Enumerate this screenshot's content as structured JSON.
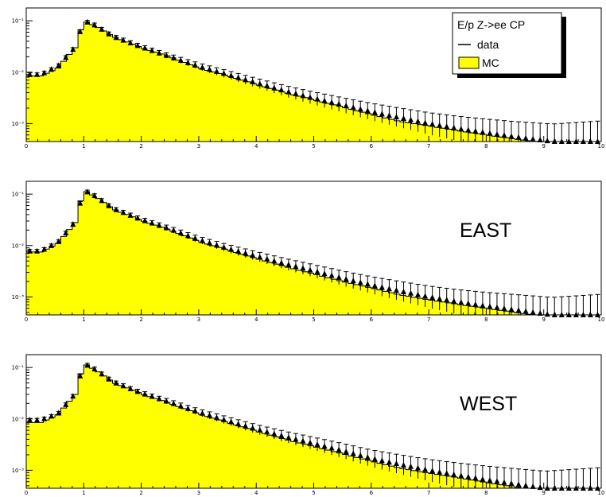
{
  "colors": {
    "mc_fill": "#ffff00",
    "mc_line": "#000000",
    "data_marker": "#000000",
    "frame": "#000000",
    "background": "#ffffff"
  },
  "legend": {
    "title": "E/p Z->ee CP",
    "entries": [
      "data",
      "MC"
    ],
    "placement": "top-right of first panel"
  },
  "chart_data": [
    {
      "type": "histogram",
      "label": "",
      "x_range": [
        0,
        10
      ],
      "x_ticks": [
        "0",
        "1",
        "2",
        "3",
        "4",
        "5",
        "6",
        "7",
        "8",
        "9",
        "10"
      ],
      "y_scale": "log",
      "y_ticks": [
        "10⁻¹",
        "10⁻²",
        "10⁻³"
      ],
      "series": [
        {
          "name": "MC",
          "style": "filled histogram",
          "x": [
            0.05,
            0.25,
            0.55,
            0.85,
            1.0,
            1.2,
            1.5,
            2.0,
            2.5,
            3.0,
            3.5,
            4.0,
            4.5,
            5.0,
            5.5,
            6.0,
            6.5,
            7.0,
            7.5,
            8.0,
            8.5,
            9.0,
            9.5,
            10.0
          ],
          "y": [
            0.0085,
            0.0085,
            0.012,
            0.03,
            0.1,
            0.08,
            0.05,
            0.03,
            0.02,
            0.012,
            0.0085,
            0.0058,
            0.004,
            0.0029,
            0.0021,
            0.0015,
            0.0011,
            0.0009,
            0.00073,
            0.0006,
            0.0005,
            0.00043,
            0.00036,
            0.00031
          ]
        },
        {
          "name": "data",
          "style": "triangles with error bars",
          "x": [
            0.05,
            0.25,
            0.55,
            0.85,
            1.0,
            1.2,
            1.5,
            2.0,
            2.5,
            3.0,
            3.5,
            4.0,
            4.5,
            5.0,
            5.5,
            6.0,
            6.5,
            7.0,
            7.5,
            8.0,
            8.5,
            9.0,
            9.5,
            10.0
          ],
          "y": [
            0.009,
            0.009,
            0.013,
            0.031,
            0.1,
            0.082,
            0.05,
            0.031,
            0.02,
            0.013,
            0.009,
            0.0062,
            0.0043,
            0.0031,
            0.0023,
            0.0017,
            0.0013,
            0.001,
            0.0008,
            0.00066,
            0.00055,
            0.00047,
            0.0004,
            0.00034
          ]
        }
      ]
    },
    {
      "type": "histogram",
      "label": "EAST",
      "x_range": [
        0,
        10
      ],
      "x_ticks": [
        "0",
        "1",
        "2",
        "3",
        "4",
        "5",
        "6",
        "7",
        "8",
        "9",
        "10"
      ],
      "y_scale": "log",
      "y_ticks": [
        "10⁻¹",
        "10⁻²",
        "10⁻³"
      ],
      "series": [
        {
          "name": "MC",
          "style": "filled histogram",
          "x": [
            0.05,
            0.25,
            0.55,
            0.85,
            1.0,
            1.2,
            1.5,
            2.0,
            2.5,
            3.0,
            3.5,
            4.0,
            4.5,
            5.0,
            5.5,
            6.0,
            6.5,
            7.0,
            7.5,
            8.0,
            8.5,
            9.0,
            9.5,
            10.0
          ],
          "y": [
            0.0075,
            0.0075,
            0.011,
            0.028,
            0.12,
            0.09,
            0.052,
            0.031,
            0.02,
            0.012,
            0.0082,
            0.0056,
            0.0039,
            0.0028,
            0.002,
            0.0015,
            0.0011,
            0.00088,
            0.00072,
            0.0006,
            0.0005,
            0.00042,
            0.00035,
            0.0003
          ]
        },
        {
          "name": "data",
          "style": "triangles with error bars",
          "x": [
            0.05,
            0.25,
            0.55,
            0.85,
            1.0,
            1.2,
            1.5,
            2.0,
            2.5,
            3.0,
            3.5,
            4.0,
            4.5,
            5.0,
            5.5,
            6.0,
            6.5,
            7.0,
            7.5,
            8.0,
            8.5,
            9.0,
            9.5,
            10.0
          ],
          "y": [
            0.0078,
            0.0078,
            0.0115,
            0.029,
            0.12,
            0.092,
            0.053,
            0.032,
            0.021,
            0.013,
            0.0088,
            0.0062,
            0.0044,
            0.0032,
            0.0023,
            0.0017,
            0.0013,
            0.001,
            0.0008,
            0.00066,
            0.00056,
            0.00047,
            0.00039,
            0.00034
          ]
        }
      ]
    },
    {
      "type": "histogram",
      "label": "WEST",
      "x_range": [
        0,
        10
      ],
      "x_ticks": [
        "0",
        "1",
        "2",
        "3",
        "4",
        "5",
        "6",
        "7",
        "8",
        "9",
        "10"
      ],
      "y_scale": "log",
      "y_ticks": [
        "10⁻¹",
        "10⁻²",
        "10⁻³"
      ],
      "series": [
        {
          "name": "MC",
          "style": "filled histogram",
          "x": [
            0.05,
            0.25,
            0.55,
            0.85,
            1.0,
            1.2,
            1.5,
            2.0,
            2.5,
            3.0,
            3.5,
            4.0,
            4.5,
            5.0,
            5.5,
            6.0,
            6.5,
            7.0,
            7.5,
            8.0,
            8.5,
            9.0,
            9.5,
            10.0
          ],
          "y": [
            0.0085,
            0.0085,
            0.012,
            0.03,
            0.12,
            0.09,
            0.052,
            0.031,
            0.02,
            0.0125,
            0.0085,
            0.0058,
            0.004,
            0.0029,
            0.0021,
            0.0015,
            0.0011,
            0.00088,
            0.00072,
            0.00058,
            0.00047,
            0.00039,
            0.00031,
            0.00025
          ]
        },
        {
          "name": "data",
          "style": "triangles with error bars",
          "x": [
            0.05,
            0.25,
            0.55,
            0.85,
            1.0,
            1.2,
            1.5,
            2.0,
            2.5,
            3.0,
            3.5,
            4.0,
            4.5,
            5.0,
            5.5,
            6.0,
            6.5,
            7.0,
            7.5,
            8.0,
            8.5,
            9.0,
            9.5,
            10.0
          ],
          "y": [
            0.0095,
            0.0095,
            0.0125,
            0.031,
            0.12,
            0.092,
            0.053,
            0.032,
            0.021,
            0.0135,
            0.0092,
            0.0063,
            0.0045,
            0.0033,
            0.0024,
            0.0017,
            0.0013,
            0.001,
            0.0008,
            0.00065,
            0.00054,
            0.00045,
            0.00037,
            0.0003
          ]
        }
      ]
    }
  ]
}
